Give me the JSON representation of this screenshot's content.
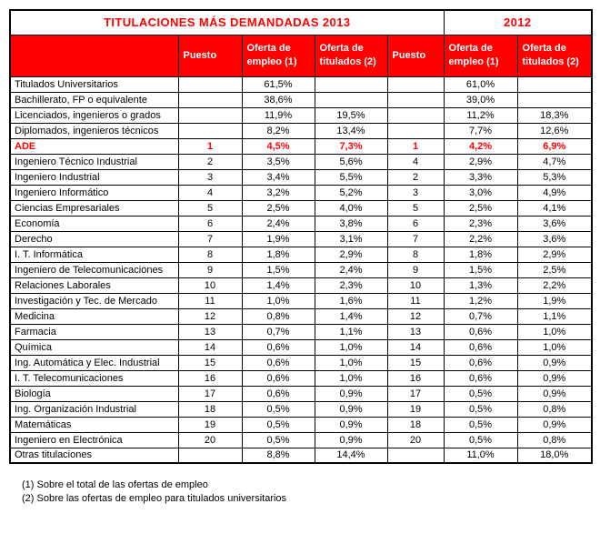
{
  "titles": {
    "t2013": "TITULACIONES MÁS DEMANDADAS 2013",
    "t2012": "2012"
  },
  "header": {
    "col_label": "",
    "col_puesto_2013": "Puesto",
    "col_empleo_2013": "Oferta de empleo (1)",
    "col_titulados_2013": "Oferta de titulados (2)",
    "col_puesto_2012": "Puesto",
    "col_empleo_2012": "Oferta de empleo (1)",
    "col_titulados_2012": "Oferta de titulados (2)"
  },
  "rows": [
    {
      "cells": [
        "Titulados Universitarios",
        "",
        "61,5%",
        "",
        "",
        "61,0%",
        ""
      ],
      "highlight": false
    },
    {
      "cells": [
        "Bachillerato, FP o equivalente",
        "",
        "38,6%",
        "",
        "",
        "39,0%",
        ""
      ],
      "highlight": false
    },
    {
      "cells": [
        "Licenciados, ingenieros o grados",
        "",
        "11,9%",
        "19,5%",
        "",
        "11,2%",
        "18,3%"
      ],
      "highlight": false
    },
    {
      "cells": [
        "Diplomados, ingenieros técnicos",
        "",
        "8,2%",
        "13,4%",
        "",
        "7,7%",
        "12,6%"
      ],
      "highlight": false
    },
    {
      "cells": [
        "ADE",
        "1",
        "4,5%",
        "7,3%",
        "1",
        "4,2%",
        "6,9%"
      ],
      "highlight": true
    },
    {
      "cells": [
        "Ingeniero Técnico Industrial",
        "2",
        "3,5%",
        "5,6%",
        "4",
        "2,9%",
        "4,7%"
      ],
      "highlight": false
    },
    {
      "cells": [
        "Ingeniero Industrial",
        "3",
        "3,4%",
        "5,5%",
        "2",
        "3,3%",
        "5,3%"
      ],
      "highlight": false
    },
    {
      "cells": [
        "Ingeniero Informático",
        "4",
        "3,2%",
        "5,2%",
        "3",
        "3,0%",
        "4,9%"
      ],
      "highlight": false
    },
    {
      "cells": [
        "Ciencias Empresariales",
        "5",
        "2,5%",
        "4,0%",
        "5",
        "2,5%",
        "4,1%"
      ],
      "highlight": false
    },
    {
      "cells": [
        "Economía",
        "6",
        "2,4%",
        "3,8%",
        "6",
        "2,3%",
        "3,6%"
      ],
      "highlight": false
    },
    {
      "cells": [
        "Derecho",
        "7",
        "1,9%",
        "3,1%",
        "7",
        "2,2%",
        "3,6%"
      ],
      "highlight": false
    },
    {
      "cells": [
        "I. T. Informática",
        "8",
        "1,8%",
        "2,9%",
        "8",
        "1,8%",
        "2,9%"
      ],
      "highlight": false
    },
    {
      "cells": [
        "Ingeniero de Telecomunicaciones",
        "9",
        "1,5%",
        "2,4%",
        "9",
        "1,5%",
        "2,5%"
      ],
      "highlight": false
    },
    {
      "cells": [
        "Relaciones Laborales",
        "10",
        "1,4%",
        "2,3%",
        "10",
        "1,3%",
        "2,2%"
      ],
      "highlight": false
    },
    {
      "cells": [
        "Investigación y Tec. de Mercado",
        "11",
        "1,0%",
        "1,6%",
        "11",
        "1,2%",
        "1,9%"
      ],
      "highlight": false
    },
    {
      "cells": [
        "Medicina",
        "12",
        "0,8%",
        "1,4%",
        "12",
        "0,7%",
        "1,1%"
      ],
      "highlight": false
    },
    {
      "cells": [
        "Farmacia",
        "13",
        "0,7%",
        "1,1%",
        "13",
        "0,6%",
        "1,0%"
      ],
      "highlight": false
    },
    {
      "cells": [
        "Química",
        "14",
        "0,6%",
        "1,0%",
        "14",
        "0,6%",
        "1,0%"
      ],
      "highlight": false
    },
    {
      "cells": [
        "Ing. Automática y Elec. Industrial",
        "15",
        "0,6%",
        "1,0%",
        "15",
        "0,6%",
        "0,9%"
      ],
      "highlight": false
    },
    {
      "cells": [
        "I. T. Telecomunicaciones",
        "16",
        "0,6%",
        "1,0%",
        "16",
        "0,6%",
        "0,9%"
      ],
      "highlight": false
    },
    {
      "cells": [
        "Biología",
        "17",
        "0,6%",
        "0,9%",
        "17",
        "0,5%",
        "0,9%"
      ],
      "highlight": false
    },
    {
      "cells": [
        "Ing. Organización Industrial",
        "18",
        "0,5%",
        "0,9%",
        "19",
        "0,5%",
        "0,8%"
      ],
      "highlight": false
    },
    {
      "cells": [
        "Matemáticas",
        "19",
        "0,5%",
        "0,9%",
        "18",
        "0,5%",
        "0,9%"
      ],
      "highlight": false
    },
    {
      "cells": [
        "Ingeniero en Electrónica",
        "20",
        "0,5%",
        "0,9%",
        "20",
        "0,5%",
        "0,8%"
      ],
      "highlight": false
    },
    {
      "cells": [
        "Otras titulaciones",
        "",
        "8,8%",
        "14,4%",
        "",
        "11,0%",
        "18,0%"
      ],
      "highlight": false
    }
  ],
  "footnotes": [
    "(1) Sobre el total de las ofertas de empleo",
    "(2) Sobre las ofertas de empleo para titulados universitarios"
  ],
  "colors": {
    "accent_red": "#ff0000",
    "header_text": "#ffffff",
    "border": "#000000"
  }
}
